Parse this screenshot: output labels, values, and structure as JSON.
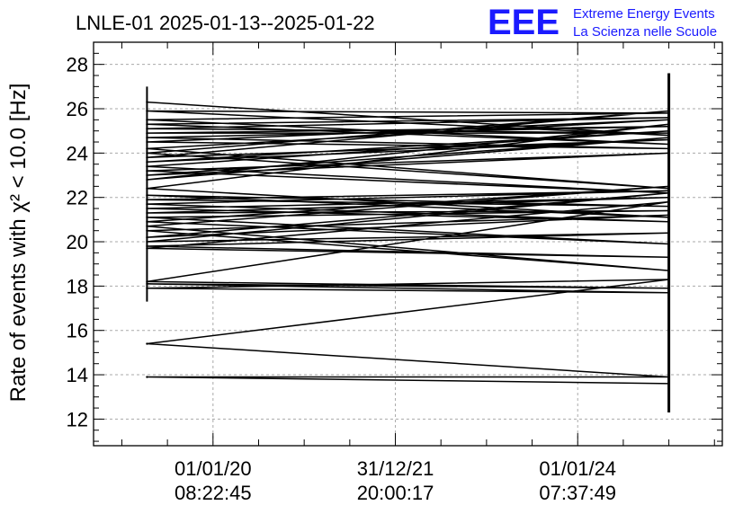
{
  "header": {
    "title": "LNLE-01 2025-01-13--2025-01-22",
    "logo": "EEE",
    "brand_line1": "Extreme Energy Events",
    "brand_line2": "La Scienza nelle Scuole"
  },
  "colors": {
    "brand_blue": "#1a1aff",
    "axis": "#000000",
    "grid": "#aaaaaa",
    "series": "#000000"
  },
  "chart_data": {
    "type": "line",
    "title": "LNLE-01 2025-01-13--2025-01-22",
    "xlabel": "",
    "ylabel": "Rate of events with χ² < 10.0 [Hz]",
    "ylim": [
      10.8,
      29
    ],
    "xlim": [
      0,
      100
    ],
    "yticks": [
      12,
      14,
      16,
      18,
      20,
      22,
      24,
      26,
      28
    ],
    "y_tick_labels": [
      "12",
      "14",
      "16",
      "18",
      "20",
      "22",
      "24",
      "26",
      "28"
    ],
    "x_ticks": [
      {
        "x": 19,
        "label_date": "01/01/20",
        "label_time": "08:22:45"
      },
      {
        "x": 48,
        "label_date": "31/12/21",
        "label_time": "20:00:17"
      },
      {
        "x": 77,
        "label_date": "01/01/24",
        "label_time": "07:37:49"
      }
    ],
    "grid": true,
    "legend": "none",
    "x": [
      8.5,
      91.5
    ],
    "start_point_values": [
      26.3,
      25.9,
      25.5,
      25.3,
      25.1,
      24.9,
      24.7,
      24.5,
      24.2,
      24.0,
      23.8,
      23.6,
      23.4,
      23.2,
      23.0,
      22.8,
      22.4,
      22.1,
      21.9,
      21.7,
      21.5,
      21.3,
      21.1,
      20.9,
      20.7,
      20.5,
      20.2,
      20.0,
      19.8,
      19.7,
      18.2,
      18.1,
      17.9,
      15.4,
      13.9
    ],
    "end_point_values": [
      24.8,
      25.8,
      24.4,
      25.6,
      24.9,
      25.2,
      24.2,
      25.5,
      22.4,
      25.9,
      24.6,
      25.0,
      22.2,
      24.0,
      24.7,
      25.3,
      21.1,
      21.6,
      22.3,
      20.9,
      22.0,
      21.4,
      19.9,
      22.5,
      18.7,
      21.2,
      22.2,
      20.4,
      19.3,
      21.8,
      17.9,
      17.7,
      18.3,
      13.9,
      13.6
    ],
    "start_whisker": [
      17.3,
      27.0
    ],
    "end_whisker": [
      12.3,
      27.6
    ]
  }
}
